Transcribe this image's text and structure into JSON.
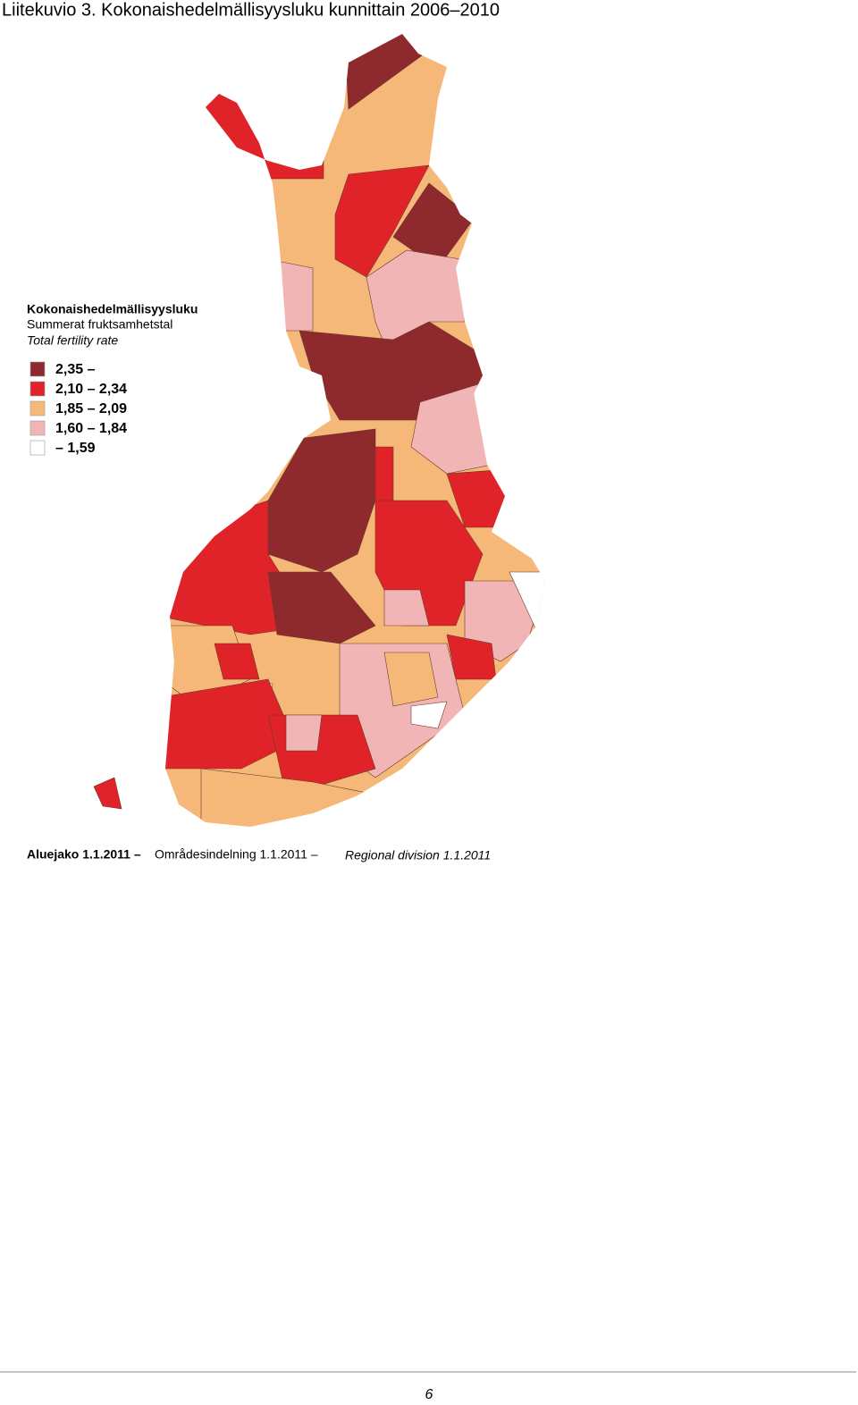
{
  "header": {
    "title": "Liitekuvio 3. Kokonaishedelmällisyysluku kunnittain 2006–2010"
  },
  "legend": {
    "title": "Kokonaishedelmällisyysluku",
    "subtitle": "Summerat fruktsamhetstal",
    "subtitle_en": "Total fertility rate",
    "items": [
      {
        "label": "2,35 –",
        "color": "#8e2a2e"
      },
      {
        "label": "2,10 – 2,34",
        "color": "#e02329"
      },
      {
        "label": "1,85 – 2,09",
        "color": "#f5b878"
      },
      {
        "label": "1,60 – 1,84",
        "color": "#f2b5b5"
      },
      {
        "label": "– 1,59",
        "color": "#ffffff"
      }
    ]
  },
  "footer": {
    "fi": "Aluejako 1.1.2011 –",
    "sv": "Områdesindelning 1.1.2011 –",
    "en": "Regional division 1.1.2011"
  },
  "page_number": "6"
}
